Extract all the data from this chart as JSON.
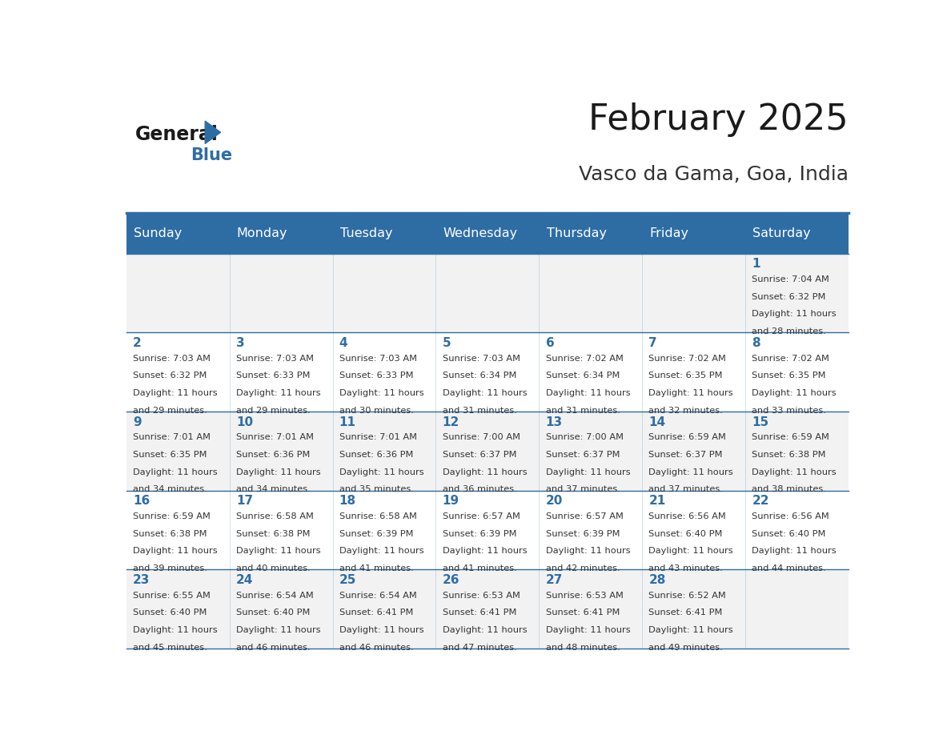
{
  "title": "February 2025",
  "subtitle": "Vasco da Gama, Goa, India",
  "header_bg": "#2E6DA4",
  "header_text_color": "#FFFFFF",
  "cell_bg_light": "#F2F2F2",
  "cell_bg_white": "#FFFFFF",
  "day_headers": [
    "Sunday",
    "Monday",
    "Tuesday",
    "Wednesday",
    "Thursday",
    "Friday",
    "Saturday"
  ],
  "title_color": "#1a1a1a",
  "subtitle_color": "#333333",
  "day_num_color": "#2E6DA4",
  "info_text_color": "#333333",
  "line_color": "#2E6DA4",
  "logo_general_color": "#1a1a1a",
  "logo_blue_color": "#2E6DA4",
  "days": [
    {
      "day": 1,
      "col": 6,
      "row": 0,
      "sunrise": "7:04 AM",
      "sunset": "6:32 PM",
      "daylight_suffix": "28 minutes."
    },
    {
      "day": 2,
      "col": 0,
      "row": 1,
      "sunrise": "7:03 AM",
      "sunset": "6:32 PM",
      "daylight_suffix": "29 minutes."
    },
    {
      "day": 3,
      "col": 1,
      "row": 1,
      "sunrise": "7:03 AM",
      "sunset": "6:33 PM",
      "daylight_suffix": "29 minutes."
    },
    {
      "day": 4,
      "col": 2,
      "row": 1,
      "sunrise": "7:03 AM",
      "sunset": "6:33 PM",
      "daylight_suffix": "30 minutes."
    },
    {
      "day": 5,
      "col": 3,
      "row": 1,
      "sunrise": "7:03 AM",
      "sunset": "6:34 PM",
      "daylight_suffix": "31 minutes."
    },
    {
      "day": 6,
      "col": 4,
      "row": 1,
      "sunrise": "7:02 AM",
      "sunset": "6:34 PM",
      "daylight_suffix": "31 minutes."
    },
    {
      "day": 7,
      "col": 5,
      "row": 1,
      "sunrise": "7:02 AM",
      "sunset": "6:35 PM",
      "daylight_suffix": "32 minutes."
    },
    {
      "day": 8,
      "col": 6,
      "row": 1,
      "sunrise": "7:02 AM",
      "sunset": "6:35 PM",
      "daylight_suffix": "33 minutes."
    },
    {
      "day": 9,
      "col": 0,
      "row": 2,
      "sunrise": "7:01 AM",
      "sunset": "6:35 PM",
      "daylight_suffix": "34 minutes."
    },
    {
      "day": 10,
      "col": 1,
      "row": 2,
      "sunrise": "7:01 AM",
      "sunset": "6:36 PM",
      "daylight_suffix": "34 minutes."
    },
    {
      "day": 11,
      "col": 2,
      "row": 2,
      "sunrise": "7:01 AM",
      "sunset": "6:36 PM",
      "daylight_suffix": "35 minutes."
    },
    {
      "day": 12,
      "col": 3,
      "row": 2,
      "sunrise": "7:00 AM",
      "sunset": "6:37 PM",
      "daylight_suffix": "36 minutes."
    },
    {
      "day": 13,
      "col": 4,
      "row": 2,
      "sunrise": "7:00 AM",
      "sunset": "6:37 PM",
      "daylight_suffix": "37 minutes."
    },
    {
      "day": 14,
      "col": 5,
      "row": 2,
      "sunrise": "6:59 AM",
      "sunset": "6:37 PM",
      "daylight_suffix": "37 minutes."
    },
    {
      "day": 15,
      "col": 6,
      "row": 2,
      "sunrise": "6:59 AM",
      "sunset": "6:38 PM",
      "daylight_suffix": "38 minutes."
    },
    {
      "day": 16,
      "col": 0,
      "row": 3,
      "sunrise": "6:59 AM",
      "sunset": "6:38 PM",
      "daylight_suffix": "39 minutes."
    },
    {
      "day": 17,
      "col": 1,
      "row": 3,
      "sunrise": "6:58 AM",
      "sunset": "6:38 PM",
      "daylight_suffix": "40 minutes."
    },
    {
      "day": 18,
      "col": 2,
      "row": 3,
      "sunrise": "6:58 AM",
      "sunset": "6:39 PM",
      "daylight_suffix": "41 minutes."
    },
    {
      "day": 19,
      "col": 3,
      "row": 3,
      "sunrise": "6:57 AM",
      "sunset": "6:39 PM",
      "daylight_suffix": "41 minutes."
    },
    {
      "day": 20,
      "col": 4,
      "row": 3,
      "sunrise": "6:57 AM",
      "sunset": "6:39 PM",
      "daylight_suffix": "42 minutes."
    },
    {
      "day": 21,
      "col": 5,
      "row": 3,
      "sunrise": "6:56 AM",
      "sunset": "6:40 PM",
      "daylight_suffix": "43 minutes."
    },
    {
      "day": 22,
      "col": 6,
      "row": 3,
      "sunrise": "6:56 AM",
      "sunset": "6:40 PM",
      "daylight_suffix": "44 minutes."
    },
    {
      "day": 23,
      "col": 0,
      "row": 4,
      "sunrise": "6:55 AM",
      "sunset": "6:40 PM",
      "daylight_suffix": "45 minutes."
    },
    {
      "day": 24,
      "col": 1,
      "row": 4,
      "sunrise": "6:54 AM",
      "sunset": "6:40 PM",
      "daylight_suffix": "46 minutes."
    },
    {
      "day": 25,
      "col": 2,
      "row": 4,
      "sunrise": "6:54 AM",
      "sunset": "6:41 PM",
      "daylight_suffix": "46 minutes."
    },
    {
      "day": 26,
      "col": 3,
      "row": 4,
      "sunrise": "6:53 AM",
      "sunset": "6:41 PM",
      "daylight_suffix": "47 minutes."
    },
    {
      "day": 27,
      "col": 4,
      "row": 4,
      "sunrise": "6:53 AM",
      "sunset": "6:41 PM",
      "daylight_suffix": "48 minutes."
    },
    {
      "day": 28,
      "col": 5,
      "row": 4,
      "sunrise": "6:52 AM",
      "sunset": "6:41 PM",
      "daylight_suffix": "49 minutes."
    }
  ]
}
